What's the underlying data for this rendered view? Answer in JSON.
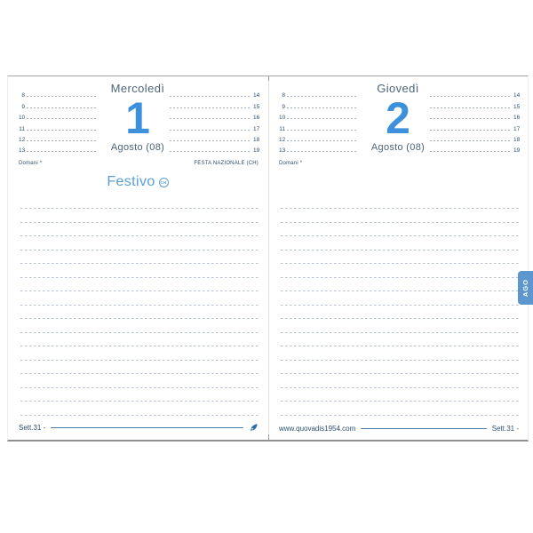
{
  "colors": {
    "day_number_blue": "#3d91dc",
    "header_gray_blue": "#4d6478",
    "small_text_navy": "#2d4f6e",
    "holiday_blue": "#589fd6",
    "tab_blue": "#5d97cd",
    "footer_rule_blue": "#4b7aa9",
    "line_gray": "#b6c2cd"
  },
  "left_page": {
    "day_name": "Mercoledì",
    "day_number": "1",
    "month_label": "Agosto (08)",
    "hours_morning": [
      "8",
      "9",
      "10",
      "11",
      "12",
      "13"
    ],
    "hours_afternoon": [
      "14",
      "15",
      "16",
      "17",
      "18",
      "19"
    ],
    "note_left": "Domani *",
    "note_right": "FESTA NAZIONALE (CH)",
    "holiday_label": "Festivo",
    "holiday_badge": "CH",
    "note_lines_count": 16,
    "footer_week": "Sett.31 -"
  },
  "right_page": {
    "day_name": "Giovedì",
    "day_number": "2",
    "month_label": "Agosto (08)",
    "hours_morning": [
      "8",
      "9",
      "10",
      "11",
      "12",
      "13"
    ],
    "hours_afternoon": [
      "14",
      "15",
      "16",
      "17",
      "18",
      "19"
    ],
    "note_left": "Domani *",
    "note_lines_count": 16,
    "footer_site": "www.quovadis1954.com",
    "footer_week": "Sett.31 -"
  },
  "month_tab_label": "AGO"
}
